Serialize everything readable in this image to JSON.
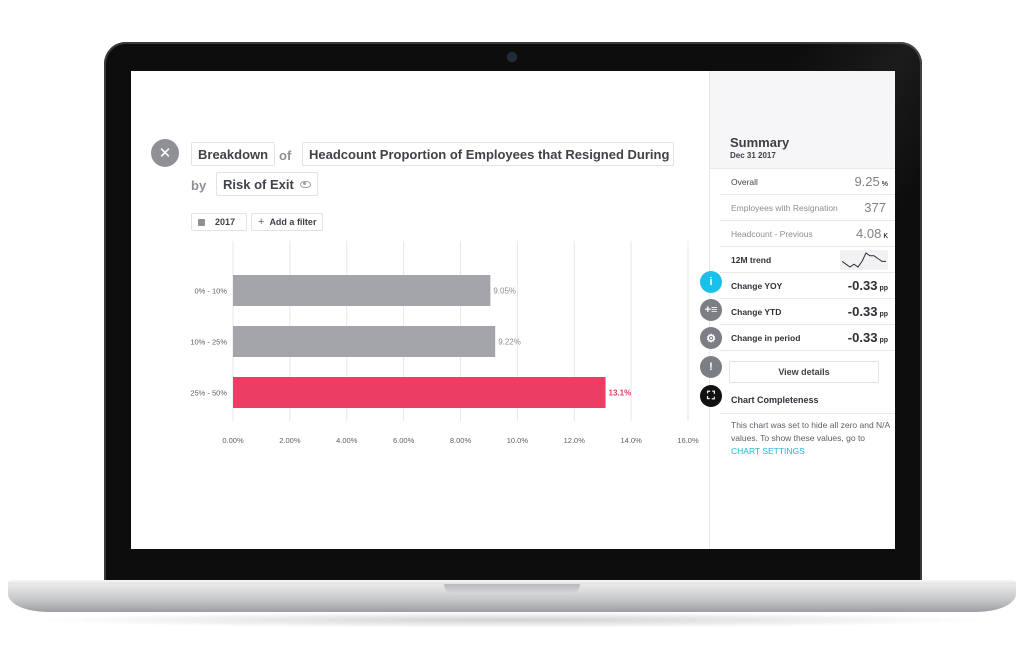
{
  "header": {
    "close_icon": "close-icon",
    "breakdown_label": "Breakdown",
    "of_word": "of",
    "metric_label": "Headcount Proportion of Employees that Resigned During P...",
    "by_word": "by",
    "dimension_label": "Risk of Exit",
    "dimension_icon": "eye-icon"
  },
  "filters": {
    "year": "2017",
    "year_icon": "calendar-icon",
    "add_filter_label": "Add a filter",
    "add_icon": "plus-icon"
  },
  "chart_data": {
    "type": "bar",
    "orientation": "horizontal",
    "categories": [
      "0% - 10%",
      "10% - 25%",
      "25% - 50%"
    ],
    "values": [
      9.05,
      9.22,
      13.1
    ],
    "value_labels": [
      "9.05%",
      "9.22%",
      "13.1%"
    ],
    "highlight_index": 2,
    "xlim": [
      0,
      16
    ],
    "x_ticks": [
      "0.00%",
      "2.00%",
      "4.00%",
      "6.00%",
      "8.00%",
      "10.0%",
      "12.0%",
      "14.0%",
      "16.0%"
    ],
    "grid": true,
    "colors": {
      "default": "#a3a5aa",
      "highlight": "#ec3d64",
      "default_label": "#8a8d92",
      "highlight_label": "#e33b5f"
    }
  },
  "summary": {
    "title": "Summary",
    "date": "Dec 31 2017",
    "rows": [
      {
        "label": "Overall",
        "value": "9.25",
        "unit": "%"
      },
      {
        "label": "Employees with Resignation",
        "value": "377",
        "unit": ""
      },
      {
        "label": "Headcount - Previous",
        "value": "4.08",
        "unit": "K"
      }
    ],
    "trend_label": "12M trend",
    "trend_values": [
      6,
      5,
      4,
      5,
      4,
      6,
      9,
      8,
      8,
      7,
      6,
      6
    ],
    "changes": [
      {
        "label": "Change YOY",
        "value": "-0.33",
        "unit": "pp"
      },
      {
        "label": "Change YTD",
        "value": "-0.33",
        "unit": "pp"
      },
      {
        "label": "Change in period",
        "value": "-0.33",
        "unit": "pp"
      }
    ],
    "view_details_label": "View details",
    "completeness_label": "Chart Completeness",
    "note_text": "This chart was set to hide all zero and N/A values. To show these values, go to",
    "note_link": "CHART SETTINGS",
    "icons": [
      {
        "name": "info-icon",
        "glyph": "i",
        "color": "#19c1ea"
      },
      {
        "name": "add-list-icon",
        "glyph": "+≡",
        "color": "#7b7e84"
      },
      {
        "name": "gear-icon",
        "glyph": "⚙",
        "color": "#7b7e84"
      },
      {
        "name": "alert-icon",
        "glyph": "!",
        "color": "#7b7e84"
      },
      {
        "name": "fullscreen-icon",
        "glyph": "⛶",
        "color": "#111111"
      }
    ]
  }
}
